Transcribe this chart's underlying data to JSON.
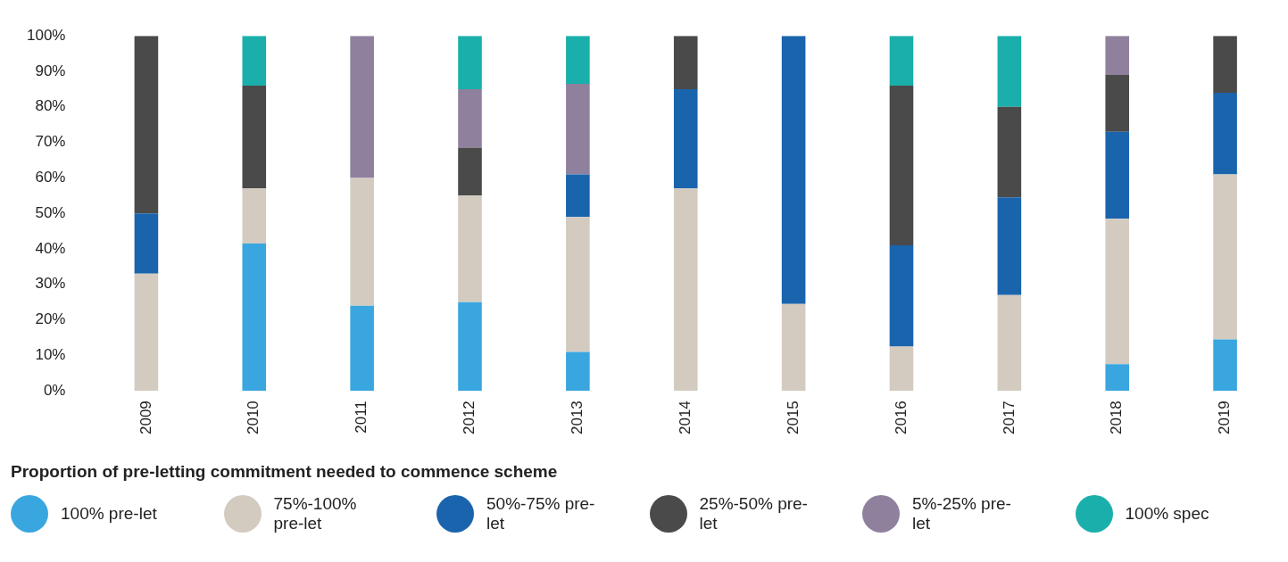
{
  "chart_data": {
    "type": "bar",
    "stacked": true,
    "legend_title": "Proportion of pre-letting commitment needed to commence scheme",
    "legend": "bottom",
    "grid": false,
    "categories": [
      "2009",
      "2010",
      "2011",
      "2012",
      "2013",
      "2014",
      "2015",
      "2016",
      "2017",
      "2018",
      "2019"
    ],
    "ylim": [
      0,
      100
    ],
    "yticks": [
      {
        "value": 0,
        "label": "0%"
      },
      {
        "value": 10,
        "label": "10%"
      },
      {
        "value": 20,
        "label": "20%"
      },
      {
        "value": 30,
        "label": "30%"
      },
      {
        "value": 40,
        "label": "40%"
      },
      {
        "value": 50,
        "label": "50%"
      },
      {
        "value": 60,
        "label": "60%"
      },
      {
        "value": 70,
        "label": "70%"
      },
      {
        "value": 80,
        "label": "80%"
      },
      {
        "value": 90,
        "label": "90%"
      },
      {
        "value": 100,
        "label": "100%"
      }
    ],
    "series": [
      {
        "name": "100% pre-let",
        "color": "#3aa6e0",
        "values": [
          null,
          41.5,
          24,
          25,
          11,
          null,
          null,
          null,
          null,
          7.5,
          14.5
        ]
      },
      {
        "name": "75%-100% pre-let",
        "color": "#d3cbc0",
        "values": [
          33,
          15.5,
          36,
          30,
          38,
          57,
          24.5,
          12.5,
          27,
          41,
          46.5
        ]
      },
      {
        "name": "50%-75% pre-let",
        "color": "#1a64ad",
        "values": [
          17,
          null,
          null,
          null,
          12,
          28,
          75.5,
          28.5,
          27.5,
          24.5,
          23
        ]
      },
      {
        "name": "25%-50% pre-let",
        "color": "#4a4a4a",
        "values": [
          50,
          29,
          null,
          13.5,
          null,
          15,
          null,
          45,
          25.5,
          16,
          16
        ]
      },
      {
        "name": "5%-25% pre-let",
        "color": "#8f819d",
        "values": [
          null,
          null,
          40,
          16.5,
          25.5,
          null,
          null,
          null,
          null,
          11,
          null
        ]
      },
      {
        "name": "100% spec",
        "color": "#1aafaa",
        "values": [
          null,
          14,
          null,
          15,
          13.5,
          null,
          null,
          14,
          20,
          null,
          null
        ]
      }
    ]
  }
}
